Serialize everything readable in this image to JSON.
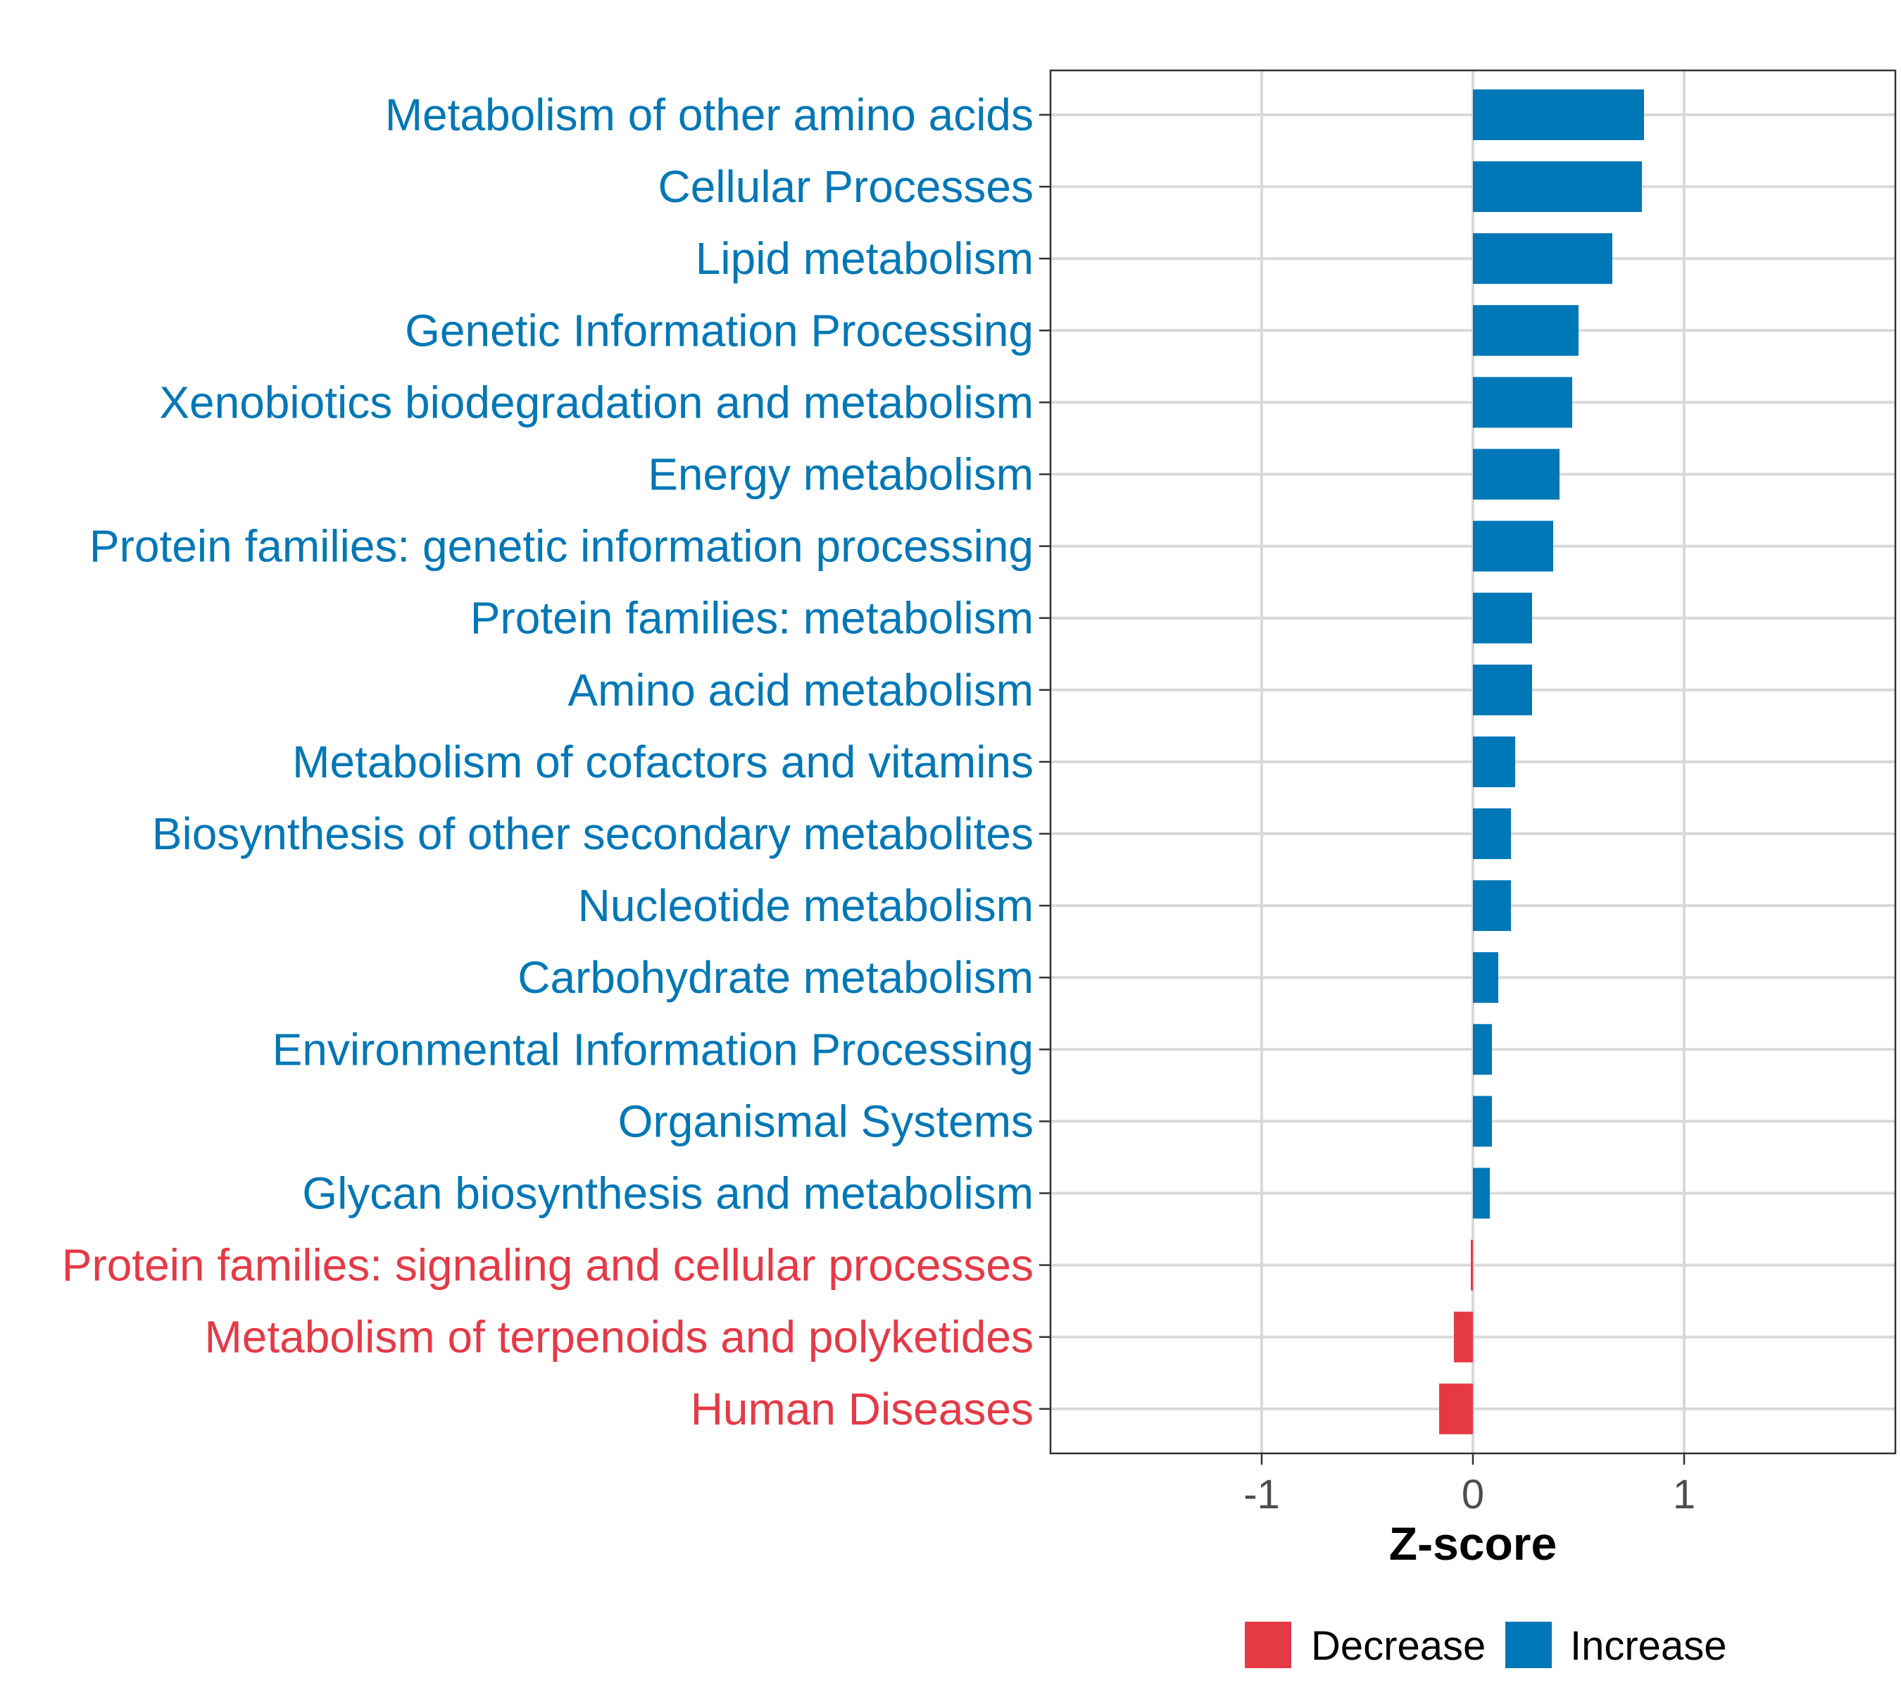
{
  "chart_data": {
    "type": "bar",
    "orientation": "horizontal",
    "xlabel": "Z-score",
    "ylabel": "",
    "xlim": [
      -2,
      2
    ],
    "xticks": [
      -1,
      0,
      1
    ],
    "xtick_labels": [
      "-1",
      "0",
      "1"
    ],
    "grid": true,
    "legend_position": "bottom",
    "colors": {
      "Decrease": "#E63946",
      "Increase": "#0077B6"
    },
    "legend": [
      {
        "label": "Decrease",
        "color": "#E63946"
      },
      {
        "label": "Increase",
        "color": "#0077B6"
      }
    ],
    "categories": [
      "Metabolism of other amino acids",
      "Cellular Processes",
      "Lipid metabolism",
      "Genetic Information Processing",
      "Xenobiotics biodegradation and metabolism",
      "Energy metabolism",
      "Protein families: genetic information processing",
      "Protein families: metabolism",
      "Amino acid metabolism",
      "Metabolism of cofactors and vitamins",
      "Biosynthesis of other secondary metabolites",
      "Nucleotide metabolism",
      "Carbohydrate metabolism",
      "Environmental Information Processing",
      "Organismal Systems",
      "Glycan biosynthesis and metabolism",
      "Protein families: signaling and cellular processes",
      "Metabolism of terpenoids and polyketides",
      "Human Diseases"
    ],
    "values": [
      0.81,
      0.8,
      0.66,
      0.5,
      0.47,
      0.41,
      0.38,
      0.28,
      0.28,
      0.2,
      0.18,
      0.18,
      0.12,
      0.09,
      0.09,
      0.08,
      -0.01,
      -0.09,
      -0.16
    ],
    "groups": [
      "Increase",
      "Increase",
      "Increase",
      "Increase",
      "Increase",
      "Increase",
      "Increase",
      "Increase",
      "Increase",
      "Increase",
      "Increase",
      "Increase",
      "Increase",
      "Increase",
      "Increase",
      "Increase",
      "Decrease",
      "Decrease",
      "Decrease"
    ]
  }
}
